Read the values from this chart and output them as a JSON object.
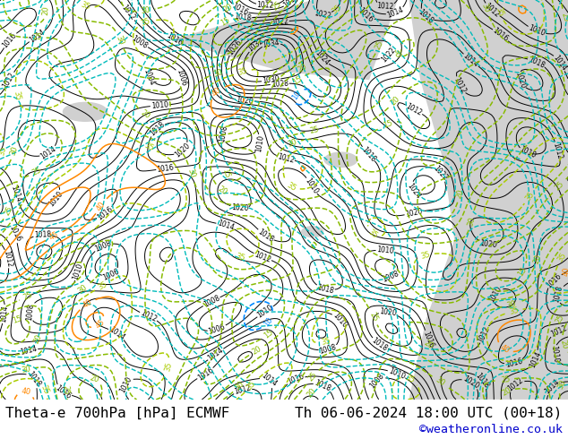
{
  "background_color": "#ffffff",
  "land_color": "#c8e89a",
  "ocean_color": "#d0d0d0",
  "title_left": "Theta-e 700hPa [hPa] ECMWF",
  "title_right": "Th 06-06-2024 18:00 UTC (00+18)",
  "copyright": "©weatheronline.co.uk",
  "title_fontsize": 11.5,
  "copyright_fontsize": 9.5,
  "copyright_color": "#0000cc",
  "text_color": "#000000",
  "fig_width": 6.34,
  "fig_height": 4.9,
  "dpi": 100,
  "contour_black": "#000000",
  "contour_green": "#88bb00",
  "contour_yellow_green": "#aacc00",
  "contour_orange": "#ff8800",
  "contour_red": "#ff3300",
  "contour_cyan": "#00bbbb",
  "contour_blue": "#0088ff",
  "lw_black": 0.7,
  "lw_colored": 1.1
}
